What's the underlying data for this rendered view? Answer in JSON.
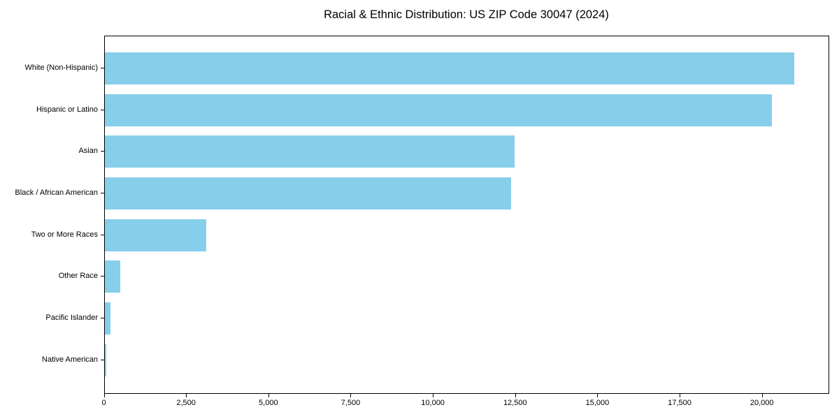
{
  "chart_data": {
    "type": "bar",
    "orientation": "horizontal",
    "title": "Racial & Ethnic Distribution: US ZIP Code 30047 (2024)",
    "categories": [
      "White (Non-Hispanic)",
      "Hispanic or Latino",
      "Asian",
      "Black / African American",
      "Two or More Races",
      "Other Race",
      "Pacific Islander",
      "Native American"
    ],
    "values": [
      21000,
      20320,
      12490,
      12390,
      3090,
      480,
      180,
      60
    ],
    "xlabel": "",
    "ylabel": "",
    "xlim": [
      0,
      22035
    ],
    "x_ticks": [
      {
        "value": 0,
        "label": "0"
      },
      {
        "value": 2500,
        "label": "2,500"
      },
      {
        "value": 5000,
        "label": "5,000"
      },
      {
        "value": 7500,
        "label": "7,500"
      },
      {
        "value": 10000,
        "label": "10,000"
      },
      {
        "value": 12500,
        "label": "12,500"
      },
      {
        "value": 15000,
        "label": "15,000"
      },
      {
        "value": 17500,
        "label": "17,500"
      },
      {
        "value": 20000,
        "label": "20,000"
      }
    ],
    "bar_color": "#87CEEB",
    "axis_color": "#000000",
    "grid": false,
    "legend_position": "none"
  }
}
